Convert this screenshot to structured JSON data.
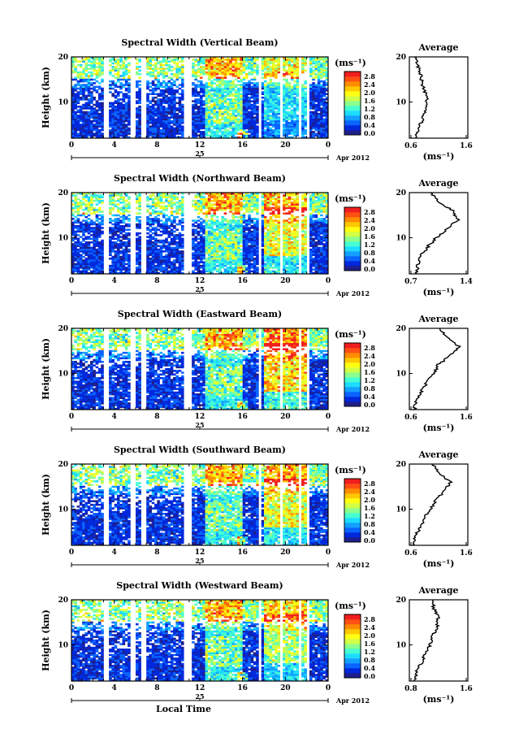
{
  "shared": {
    "height_label": "Height (km)",
    "time_label": "Local Time",
    "day": "25",
    "date_label": "Apr 2012",
    "avg_title": "Average",
    "unit": "(ms⁻¹)",
    "x_ticks": [
      "0",
      "4",
      "8",
      "12",
      "16",
      "20",
      "0"
    ],
    "y_ticks": [
      "20",
      "10"
    ],
    "colorbar_ticks": [
      "2.8",
      "2.4",
      "2.0",
      "1.6",
      "1.2",
      "0.8",
      "0.4",
      "0.0"
    ],
    "colorbar_stops": [
      "#1e1e8c",
      "#0028dc",
      "#0a64ff",
      "#14a0ff",
      "#1edcff",
      "#46ffd2",
      "#8cff8c",
      "#d2ff46",
      "#ffff14",
      "#ffc800",
      "#ff8c00",
      "#ff5014",
      "#f01e1e"
    ]
  },
  "chart_data": [
    {
      "type": "heatmap",
      "title": "Spectral Width (Vertical Beam)",
      "xlabel": "",
      "ylabel": "Height (km)",
      "xlim": [
        0,
        24
      ],
      "ylim": [
        2,
        20
      ],
      "zlim": [
        0.0,
        3.0
      ],
      "data_gaps_hours": [
        [
          3.0,
          3.6
        ],
        [
          5.6,
          5.9
        ],
        [
          6.4,
          7.0
        ],
        [
          10.4,
          11.2
        ],
        [
          17.4,
          17.7
        ],
        [
          19.4,
          19.7
        ],
        [
          21.2,
          21.5
        ],
        [
          22.0,
          22.3
        ]
      ],
      "profile": {
        "title": "Average",
        "xticks": [
          "0.6",
          "1.6"
        ],
        "xlim": [
          0.6,
          1.6
        ],
        "heights": [
          2,
          4,
          6,
          8,
          10,
          12,
          14,
          16,
          18,
          20
        ],
        "values": [
          0.72,
          0.75,
          0.82,
          0.86,
          0.9,
          0.88,
          0.82,
          0.8,
          0.74,
          0.7
        ]
      }
    },
    {
      "type": "heatmap",
      "title": "Spectral Width (Northward Beam)",
      "xlabel": "",
      "ylabel": "Height (km)",
      "xlim": [
        0,
        24
      ],
      "ylim": [
        2,
        20
      ],
      "zlim": [
        0.0,
        3.0
      ],
      "data_gaps_hours": [
        [
          3.0,
          3.6
        ],
        [
          5.6,
          5.9
        ],
        [
          6.4,
          7.0
        ],
        [
          10.4,
          11.2
        ],
        [
          17.4,
          17.7
        ],
        [
          19.4,
          19.7
        ],
        [
          21.2,
          21.5
        ],
        [
          22.0,
          22.3
        ]
      ],
      "profile": {
        "title": "Average",
        "xticks": [
          "0.7",
          "1.4"
        ],
        "xlim": [
          0.7,
          1.4
        ],
        "heights": [
          2,
          4,
          6,
          8,
          10,
          12,
          14,
          16,
          18,
          20
        ],
        "values": [
          0.78,
          0.8,
          0.84,
          0.92,
          1.02,
          1.15,
          1.28,
          1.22,
          1.05,
          0.95
        ]
      }
    },
    {
      "type": "heatmap",
      "title": "Spectral Width (Eastward Beam)",
      "xlabel": "",
      "ylabel": "Height (km)",
      "xlim": [
        0,
        24
      ],
      "ylim": [
        2,
        20
      ],
      "zlim": [
        0.0,
        3.0
      ],
      "data_gaps_hours": [
        [
          3.0,
          3.6
        ],
        [
          5.6,
          5.9
        ],
        [
          6.4,
          7.0
        ],
        [
          10.4,
          11.2
        ],
        [
          17.4,
          17.7
        ],
        [
          19.4,
          19.7
        ],
        [
          21.2,
          21.5
        ],
        [
          22.0,
          22.3
        ]
      ],
      "profile": {
        "title": "Average",
        "xticks": [
          "0.6",
          "1.6"
        ],
        "xlim": [
          0.6,
          1.6
        ],
        "heights": [
          2,
          4,
          6,
          8,
          10,
          12,
          14,
          16,
          18,
          20
        ],
        "values": [
          0.68,
          0.72,
          0.8,
          0.9,
          1.02,
          1.1,
          1.3,
          1.45,
          1.25,
          1.1
        ]
      }
    },
    {
      "type": "heatmap",
      "title": "Spectral Width (Southward Beam)",
      "xlabel": "",
      "ylabel": "Height (km)",
      "xlim": [
        0,
        24
      ],
      "ylim": [
        2,
        20
      ],
      "zlim": [
        0.0,
        3.0
      ],
      "data_gaps_hours": [
        [
          3.0,
          3.6
        ],
        [
          5.6,
          5.9
        ],
        [
          6.4,
          7.0
        ],
        [
          10.4,
          11.2
        ],
        [
          17.4,
          17.7
        ],
        [
          19.4,
          19.7
        ],
        [
          21.2,
          21.5
        ],
        [
          22.0,
          22.3
        ]
      ],
      "profile": {
        "title": "Average",
        "xticks": [
          "0.6",
          "1.6"
        ],
        "xlim": [
          0.6,
          1.6
        ],
        "heights": [
          2,
          4,
          6,
          8,
          10,
          12,
          14,
          16,
          18,
          20
        ],
        "values": [
          0.66,
          0.7,
          0.78,
          0.86,
          0.96,
          1.05,
          1.2,
          1.3,
          1.12,
          1.0
        ]
      }
    },
    {
      "type": "heatmap",
      "title": "Spectral Width (Westward Beam)",
      "xlabel": "Local Time",
      "ylabel": "Height (km)",
      "xlim": [
        0,
        24
      ],
      "ylim": [
        2,
        20
      ],
      "zlim": [
        0.0,
        3.0
      ],
      "data_gaps_hours": [
        [
          3.0,
          3.6
        ],
        [
          5.6,
          5.9
        ],
        [
          6.4,
          7.0
        ],
        [
          10.4,
          11.2
        ],
        [
          17.4,
          17.7
        ],
        [
          19.4,
          19.7
        ],
        [
          21.2,
          21.5
        ],
        [
          22.0,
          22.3
        ]
      ],
      "profile": {
        "title": "Average",
        "xticks": [
          "0.8",
          "1.6"
        ],
        "xlim": [
          0.8,
          1.6
        ],
        "heights": [
          2,
          4,
          6,
          8,
          10,
          12,
          14,
          16,
          18,
          20
        ],
        "values": [
          0.88,
          0.9,
          0.96,
          1.02,
          1.08,
          1.12,
          1.18,
          1.2,
          1.14,
          1.1
        ]
      }
    }
  ]
}
